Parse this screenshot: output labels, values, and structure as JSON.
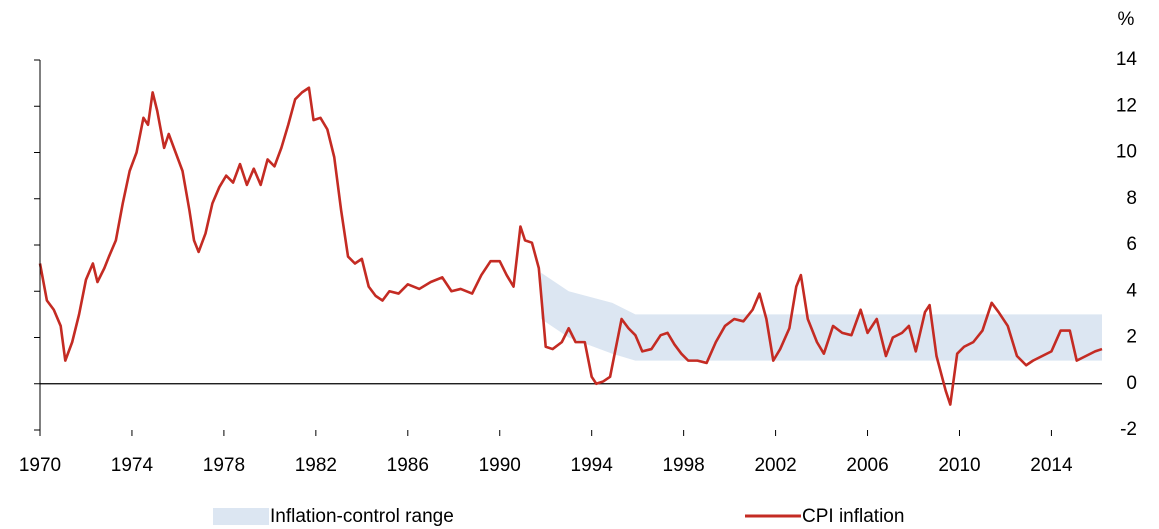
{
  "chart_data": {
    "type": "line",
    "ylabel": "%",
    "xlim": [
      1970,
      2016.2
    ],
    "xticks": [
      1970,
      1974,
      1978,
      1982,
      1986,
      1990,
      1994,
      1998,
      2002,
      2006,
      2010,
      2014
    ],
    "ylim": [
      -2,
      14
    ],
    "yticks": [
      -2,
      0,
      2,
      4,
      6,
      8,
      10,
      12,
      14
    ],
    "legend": "bottom",
    "series": [
      {
        "name": "Inflation-control range",
        "type": "band",
        "color": "#dce6f2",
        "x": [
          1991.8,
          1993.0,
          1994.9,
          1995.9,
          2016.2
        ],
        "lower": [
          2.8,
          2.0,
          1.3,
          1.0,
          1.0
        ],
        "upper": [
          4.8,
          4.0,
          3.5,
          3.0,
          3.0
        ]
      },
      {
        "name": "CPI inflation",
        "type": "line",
        "color": "#c42b23",
        "x": [
          1970.0,
          1970.3,
          1970.6,
          1970.9,
          1971.1,
          1971.4,
          1971.7,
          1972.0,
          1972.3,
          1972.5,
          1972.8,
          1973.0,
          1973.3,
          1973.6,
          1973.9,
          1974.2,
          1974.5,
          1974.7,
          1974.9,
          1975.1,
          1975.4,
          1975.6,
          1975.9,
          1976.2,
          1976.5,
          1976.7,
          1976.9,
          1977.2,
          1977.5,
          1977.8,
          1978.1,
          1978.4,
          1978.7,
          1979.0,
          1979.3,
          1979.6,
          1979.9,
          1980.2,
          1980.5,
          1980.8,
          1981.1,
          1981.4,
          1981.7,
          1981.9,
          1982.2,
          1982.5,
          1982.8,
          1983.1,
          1983.4,
          1983.7,
          1984.0,
          1984.3,
          1984.6,
          1984.9,
          1985.2,
          1985.6,
          1986.0,
          1986.5,
          1987.0,
          1987.5,
          1987.9,
          1988.3,
          1988.8,
          1989.2,
          1989.6,
          1990.0,
          1990.3,
          1990.6,
          1990.9,
          1991.1,
          1991.4,
          1991.7,
          1992.0,
          1992.3,
          1992.7,
          1993.0,
          1993.3,
          1993.7,
          1994.0,
          1994.2,
          1994.5,
          1994.8,
          1995.1,
          1995.3,
          1995.6,
          1995.9,
          1996.2,
          1996.6,
          1997.0,
          1997.3,
          1997.6,
          1997.9,
          1998.2,
          1998.6,
          1999.0,
          1999.4,
          1999.8,
          2000.2,
          2000.6,
          2001.0,
          2001.3,
          2001.6,
          2001.9,
          2002.2,
          2002.6,
          2002.9,
          2003.1,
          2003.4,
          2003.8,
          2004.1,
          2004.5,
          2004.9,
          2005.3,
          2005.7,
          2006.0,
          2006.4,
          2006.8,
          2007.1,
          2007.5,
          2007.8,
          2008.1,
          2008.5,
          2008.7,
          2009.0,
          2009.4,
          2009.6,
          2009.9,
          2010.2,
          2010.6,
          2011.0,
          2011.4,
          2011.7,
          2012.1,
          2012.5,
          2012.9,
          2013.2,
          2013.6,
          2014.0,
          2014.4,
          2014.8,
          2015.1,
          2015.5,
          2015.9,
          2016.2
        ],
        "values": [
          5.2,
          3.6,
          3.2,
          2.5,
          1.0,
          1.8,
          3.0,
          4.5,
          5.2,
          4.4,
          5.0,
          5.5,
          6.2,
          7.8,
          9.2,
          10.0,
          11.5,
          11.2,
          12.6,
          11.8,
          10.2,
          10.8,
          10.0,
          9.2,
          7.5,
          6.2,
          5.7,
          6.5,
          7.8,
          8.5,
          9.0,
          8.7,
          9.5,
          8.6,
          9.3,
          8.6,
          9.7,
          9.4,
          10.2,
          11.2,
          12.3,
          12.6,
          12.8,
          11.4,
          11.5,
          11.0,
          9.8,
          7.5,
          5.5,
          5.2,
          5.4,
          4.2,
          3.8,
          3.6,
          4.0,
          3.9,
          4.3,
          4.1,
          4.4,
          4.6,
          4.0,
          4.1,
          3.9,
          4.7,
          5.3,
          5.3,
          4.7,
          4.2,
          6.8,
          6.2,
          6.1,
          5.0,
          1.6,
          1.5,
          1.8,
          2.4,
          1.8,
          1.8,
          0.3,
          0.0,
          0.1,
          0.3,
          1.8,
          2.8,
          2.4,
          2.1,
          1.4,
          1.5,
          2.1,
          2.2,
          1.7,
          1.3,
          1.0,
          1.0,
          0.9,
          1.8,
          2.5,
          2.8,
          2.7,
          3.2,
          3.9,
          2.8,
          1.0,
          1.5,
          2.4,
          4.2,
          4.7,
          2.8,
          1.8,
          1.3,
          2.5,
          2.2,
          2.1,
          3.2,
          2.2,
          2.8,
          1.2,
          2.0,
          2.2,
          2.5,
          1.4,
          3.1,
          3.4,
          1.2,
          -0.3,
          -0.9,
          1.3,
          1.6,
          1.8,
          2.3,
          3.5,
          3.1,
          2.5,
          1.2,
          0.8,
          1.0,
          1.2,
          1.4,
          2.3,
          2.3,
          1.0,
          1.2,
          1.4,
          1.5
        ]
      }
    ]
  }
}
